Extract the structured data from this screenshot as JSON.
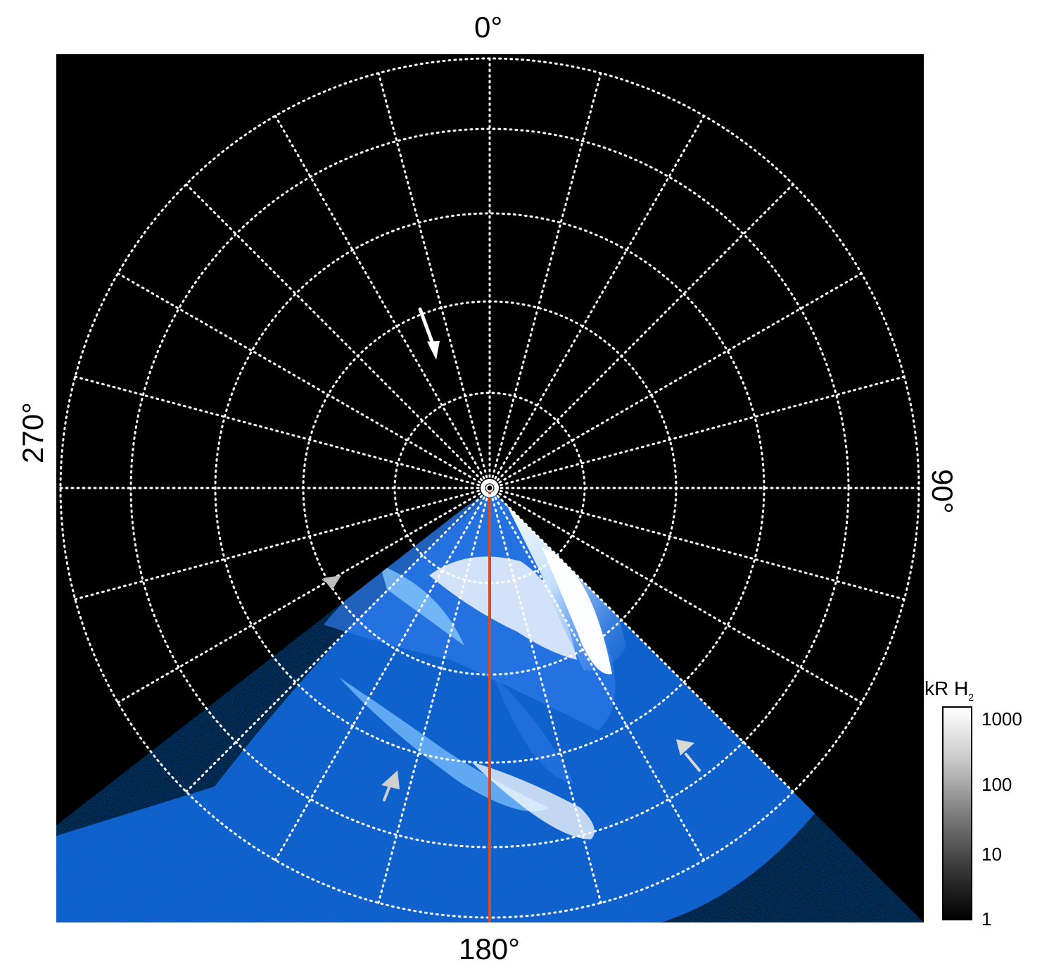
{
  "labels": {
    "top": "0°",
    "right": "90°",
    "bottom": "180°",
    "left": "270°"
  },
  "colorbar": {
    "title_main": "kR H",
    "title_sub": "2",
    "ticks": [
      "1000",
      "100",
      "10",
      "1"
    ]
  },
  "colors": {
    "background": "#000000",
    "grid": "#ffffff",
    "meridian": "#d94a1d",
    "aurora_dim": "#0c3f9e",
    "aurora_mid": "#2d79ea",
    "aurora_bright": "#ffffff",
    "arrow_primary": "#ffffff",
    "arrow_secondary": "#c9c9c9"
  }
}
